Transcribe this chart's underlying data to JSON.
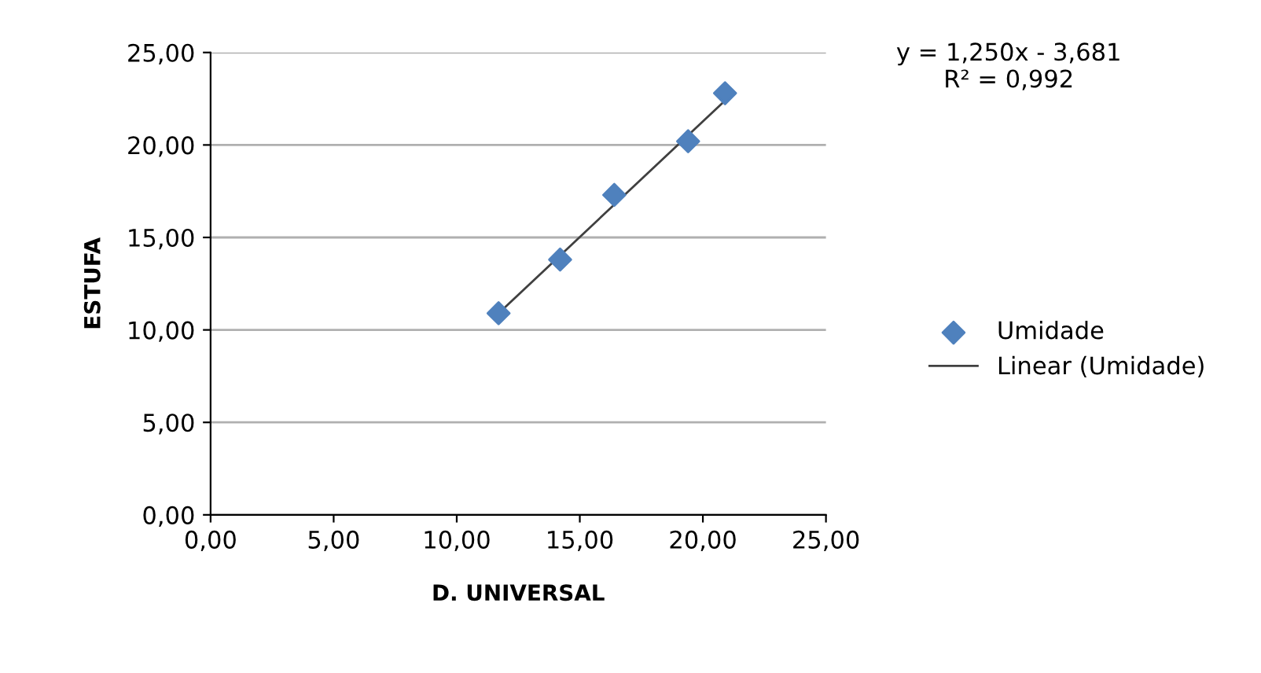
{
  "chart_data": {
    "type": "scatter",
    "xlabel": "D. UNIVERSAL",
    "ylabel": "ESTUFA",
    "x": [
      11.7,
      14.2,
      16.4,
      19.4,
      20.9
    ],
    "series": [
      {
        "name": "Umidade",
        "color": "#4f81bd",
        "marker": "diamond",
        "values": [
          10.9,
          13.8,
          17.3,
          20.2,
          22.8
        ]
      },
      {
        "name": "Linear (Umidade)",
        "type": "line",
        "color": "#404040",
        "x": [
          11.7,
          20.9
        ],
        "values": [
          10.9,
          22.4
        ],
        "marker": "none",
        "line_style": "solid"
      }
    ],
    "xlim": [
      0,
      25
    ],
    "ylim": [
      0,
      25
    ],
    "xticks": [
      {
        "value": 0,
        "label": "0,00"
      },
      {
        "value": 5,
        "label": "5,00"
      },
      {
        "value": 10,
        "label": "10,00"
      },
      {
        "value": 15,
        "label": "15,00"
      },
      {
        "value": 20,
        "label": "20,00"
      },
      {
        "value": 25,
        "label": "25,00"
      }
    ],
    "yticks": [
      {
        "value": 0,
        "label": "0,00"
      },
      {
        "value": 5,
        "label": "5,00"
      },
      {
        "value": 10,
        "label": "10,00"
      },
      {
        "value": 15,
        "label": "15,00"
      },
      {
        "value": 20,
        "label": "20,00"
      },
      {
        "value": 25,
        "label": "25,00"
      }
    ],
    "grid": "y",
    "legend": "right",
    "annotations": [
      "y = 1,250x - 3,681\nR² = 0,992"
    ]
  }
}
